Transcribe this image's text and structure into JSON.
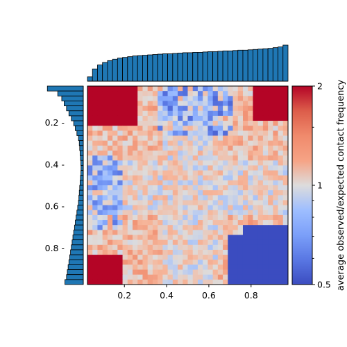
{
  "chart_data": {
    "type": "heatmap",
    "title": "",
    "n": 40,
    "axis_range": [
      0.025,
      0.975
    ],
    "x_ticks": [
      {
        "value": 0.2,
        "label": "0.2"
      },
      {
        "value": 0.4,
        "label": "0.4"
      },
      {
        "value": 0.6,
        "label": "0.6"
      },
      {
        "value": 0.8,
        "label": "0.8"
      }
    ],
    "y_ticks": [
      {
        "value": 0.2,
        "label": "0.2 -"
      },
      {
        "value": 0.4,
        "label": "0.4 -"
      },
      {
        "value": 0.6,
        "label": "0.6 -"
      },
      {
        "value": 0.8,
        "label": "0.8 -"
      }
    ],
    "colorbar": {
      "label": "average observed/expected contact frequency",
      "scale": "log",
      "range": [
        0.5,
        2
      ],
      "ticks": [
        {
          "value": 2,
          "label": "2"
        },
        {
          "value": 1,
          "label": "1"
        },
        {
          "value": 0.5,
          "label": "0.5"
        }
      ],
      "colormap": "coolwarm"
    },
    "regions": {
      "top_left_corner": 2.0,
      "top_right_corner": 2.0,
      "bottom_left_corner": 2.0,
      "bottom_right_block": 0.5,
      "top_center_band": 0.55,
      "left_center_band": 0.6,
      "background_mean": 1.15
    },
    "marginal_top": {
      "values": [
        0.12,
        0.34,
        0.45,
        0.52,
        0.57,
        0.61,
        0.64,
        0.66,
        0.68,
        0.7,
        0.71,
        0.72,
        0.73,
        0.74,
        0.75,
        0.76,
        0.76,
        0.77,
        0.78,
        0.79,
        0.79,
        0.8,
        0.8,
        0.81,
        0.82,
        0.82,
        0.83,
        0.84,
        0.84,
        0.85,
        0.86,
        0.86,
        0.87,
        0.88,
        0.89,
        0.9,
        0.91,
        0.93,
        0.95,
        1.0
      ]
    },
    "marginal_left": {
      "values": [
        0.45,
        0.32,
        0.27,
        0.24,
        0.21,
        0.18,
        0.15,
        0.12,
        0.1,
        0.08,
        0.06,
        0.05,
        0.045,
        0.04,
        0.035,
        0.03,
        0.028,
        0.03,
        0.035,
        0.04,
        0.045,
        0.05,
        0.055,
        0.06,
        0.07,
        0.08,
        0.09,
        0.1,
        0.11,
        0.12,
        0.13,
        0.14,
        0.15,
        0.16,
        0.17,
        0.18,
        0.19,
        0.2,
        0.21,
        0.23
      ]
    }
  }
}
